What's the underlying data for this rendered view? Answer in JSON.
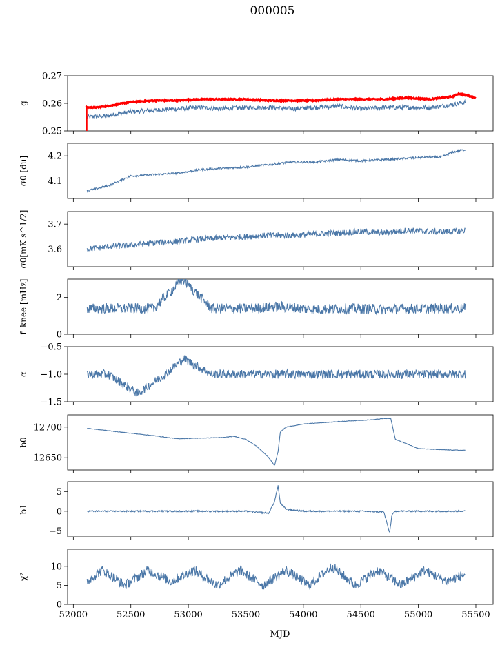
{
  "figure": {
    "title": "000005"
  },
  "colors": {
    "series": "#4c78a8",
    "highlight": "#ff0000",
    "axes": "#000000"
  },
  "chart_data": [
    {
      "type": "line",
      "ylabel": "g",
      "ylim": [
        0.25,
        0.27
      ],
      "yticks": [
        0.25,
        0.26,
        0.27
      ],
      "ytick_labels": [
        "0.25",
        "0.26",
        "0.27"
      ],
      "series": [
        {
          "color": "#4c78a8",
          "x": [
            52120,
            52300,
            52500,
            52700,
            52900,
            53100,
            53300,
            53500,
            53700,
            53900,
            54100,
            54300,
            54500,
            54700,
            54900,
            55100,
            55300,
            55410
          ],
          "y": [
            0.255,
            0.2555,
            0.257,
            0.2575,
            0.258,
            0.2585,
            0.258,
            0.2585,
            0.2585,
            0.258,
            0.2585,
            0.259,
            0.258,
            0.2585,
            0.2585,
            0.2585,
            0.2595,
            0.2605
          ]
        },
        {
          "color": "#ff0000",
          "x": [
            52110,
            52200,
            52300,
            52500,
            52700,
            52900,
            53100,
            53300,
            53500,
            53700,
            53900,
            54100,
            54300,
            54500,
            54700,
            54900,
            55100,
            55300,
            55350,
            55410,
            55500
          ],
          "y": [
            0.2585,
            0.2585,
            0.259,
            0.2605,
            0.261,
            0.261,
            0.2615,
            0.2615,
            0.2615,
            0.261,
            0.261,
            0.261,
            0.2615,
            0.2615,
            0.2615,
            0.262,
            0.2615,
            0.2625,
            0.2635,
            0.263,
            0.262
          ]
        }
      ]
    },
    {
      "type": "line",
      "ylabel": "σ0 [du]",
      "ylim": [
        4.03,
        4.25
      ],
      "yticks": [
        4.1,
        4.2
      ],
      "ytick_labels": [
        "4.1",
        "4.2"
      ],
      "series": [
        {
          "color": "#4c78a8",
          "x": [
            52120,
            52300,
            52500,
            52700,
            52900,
            53100,
            53300,
            53500,
            53700,
            53900,
            54100,
            54300,
            54500,
            54700,
            54900,
            55100,
            55200,
            55300,
            55410
          ],
          "y": [
            4.06,
            4.08,
            4.12,
            4.125,
            4.13,
            4.145,
            4.15,
            4.155,
            4.165,
            4.175,
            4.175,
            4.185,
            4.18,
            4.185,
            4.19,
            4.195,
            4.195,
            4.215,
            4.225
          ]
        }
      ]
    },
    {
      "type": "line",
      "ylabel": "σ0[mK s^1/2]",
      "ylim": [
        3.53,
        3.75
      ],
      "yticks": [
        3.6,
        3.7
      ],
      "ytick_labels": [
        "3.6",
        "3.7"
      ],
      "series": [
        {
          "color": "#4c78a8",
          "x": [
            52120,
            52300,
            52500,
            52700,
            52900,
            53100,
            53300,
            53500,
            53700,
            53900,
            54100,
            54300,
            54500,
            54700,
            54900,
            55100,
            55300,
            55410
          ],
          "y": [
            3.6,
            3.61,
            3.615,
            3.625,
            3.63,
            3.64,
            3.645,
            3.65,
            3.655,
            3.655,
            3.66,
            3.665,
            3.67,
            3.665,
            3.675,
            3.67,
            3.67,
            3.675
          ]
        }
      ]
    },
    {
      "type": "line",
      "ylabel": "f_knee [mHz]",
      "ylim": [
        0,
        3
      ],
      "yticks": [
        0,
        2
      ],
      "ytick_labels": [
        "0",
        "2"
      ],
      "series": [
        {
          "color": "#4c78a8",
          "x": [
            52120,
            52400,
            52700,
            52950,
            53200,
            53500,
            53800,
            54100,
            54400,
            54700,
            55000,
            55300,
            55410
          ],
          "y": [
            1.4,
            1.4,
            1.4,
            3.0,
            1.4,
            1.4,
            1.5,
            1.35,
            1.4,
            1.35,
            1.4,
            1.4,
            1.4
          ]
        }
      ]
    },
    {
      "type": "line",
      "ylabel": "α",
      "ylim": [
        -1.5,
        -0.5
      ],
      "yticks": [
        -1.5,
        -1.0,
        -0.5
      ],
      "ytick_labels": [
        "−1.5",
        "−1.0",
        "−0.5"
      ],
      "series": [
        {
          "color": "#4c78a8",
          "x": [
            52120,
            52300,
            52560,
            52800,
            52960,
            53200,
            53500,
            53800,
            54100,
            54400,
            54700,
            55000,
            55300,
            55410
          ],
          "y": [
            -1.0,
            -1.0,
            -1.35,
            -1.0,
            -0.72,
            -1.0,
            -1.0,
            -1.0,
            -1.0,
            -1.0,
            -1.0,
            -1.0,
            -1.0,
            -1.0
          ]
        }
      ]
    },
    {
      "type": "line",
      "ylabel": "b0",
      "ylim": [
        12630,
        12720
      ],
      "yticks": [
        12650,
        12700
      ],
      "ytick_labels": [
        "12650",
        "12700"
      ],
      "series": [
        {
          "color": "#4c78a8",
          "x": [
            52120,
            52400,
            52700,
            52900,
            53100,
            53300,
            53400,
            53500,
            53600,
            53700,
            53750,
            53780,
            53800,
            53850,
            54000,
            54300,
            54600,
            54700,
            54760,
            54800,
            55000,
            55200,
            55410
          ],
          "y": [
            12698,
            12692,
            12686,
            12681,
            12682,
            12683,
            12685,
            12680,
            12668,
            12650,
            12637,
            12660,
            12692,
            12700,
            12705,
            12709,
            12712,
            12714,
            12714,
            12680,
            12665,
            12663,
            12662
          ]
        }
      ]
    },
    {
      "type": "line",
      "ylabel": "b1",
      "ylim": [
        -6.5,
        7.5
      ],
      "yticks": [
        -5,
        0,
        5
      ],
      "ytick_labels": [
        "−5",
        "0",
        "5"
      ],
      "series": [
        {
          "color": "#4c78a8",
          "x": [
            52120,
            52500,
            53000,
            53500,
            53700,
            53750,
            53780,
            53800,
            53850,
            54000,
            54500,
            54700,
            54750,
            54770,
            54800,
            55000,
            55410
          ],
          "y": [
            0,
            0,
            0,
            0,
            -0.5,
            2.5,
            6.5,
            2.0,
            0.5,
            0,
            0,
            -0.2,
            -5.5,
            -1.0,
            0,
            0,
            0
          ]
        }
      ]
    },
    {
      "type": "line",
      "ylabel": "χ²",
      "ylim": [
        0,
        14.5
      ],
      "yticks": [
        0,
        5,
        10
      ],
      "ytick_labels": [
        "0",
        "5",
        "10"
      ],
      "series": [
        {
          "color": "#4c78a8",
          "x": [
            52120,
            52250,
            52450,
            52650,
            52850,
            53050,
            53250,
            53450,
            53650,
            53850,
            54050,
            54250,
            54450,
            54650,
            54850,
            55050,
            55250,
            55410
          ],
          "y": [
            6,
            9,
            5,
            9,
            6,
            9,
            5,
            9,
            5,
            9,
            5,
            10,
            5,
            9,
            5,
            9,
            6,
            8
          ]
        }
      ],
      "xlabel": "MJD"
    }
  ],
  "x_axis": {
    "xlim": [
      51950,
      55650
    ],
    "xticks": [
      52000,
      52500,
      53000,
      53500,
      54000,
      54500,
      55000,
      55500
    ],
    "xtick_labels": [
      "52000",
      "52500",
      "53000",
      "53500",
      "54000",
      "54500",
      "55000",
      "55500"
    ],
    "label": "MJD"
  }
}
